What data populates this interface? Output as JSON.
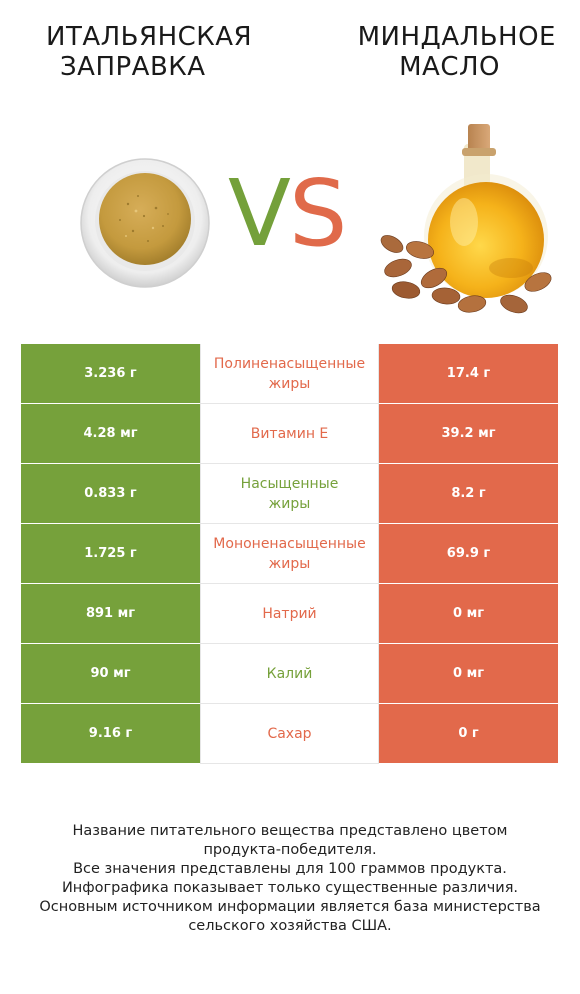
{
  "left_product": {
    "name_lines": [
      "Итальянская",
      "заправка"
    ],
    "color": "#76a13b"
  },
  "right_product": {
    "name_lines": [
      "Миндальное",
      "масло"
    ],
    "color": "#e2694b"
  },
  "vs": {
    "v": "V",
    "s": "S"
  },
  "rows": [
    {
      "left": "3.236 г",
      "label_lines": [
        "Полиненасыщенные",
        "жиры"
      ],
      "right": "17.4 г",
      "winner": "right"
    },
    {
      "left": "4.28 мг",
      "label_lines": [
        "Витамин E"
      ],
      "right": "39.2 мг",
      "winner": "right"
    },
    {
      "left": "0.833 г",
      "label_lines": [
        "Насыщенные",
        "жиры"
      ],
      "right": "8.2 г",
      "winner": "left"
    },
    {
      "left": "1.725 г",
      "label_lines": [
        "Мононенасыщенные",
        "жиры"
      ],
      "right": "69.9 г",
      "winner": "right"
    },
    {
      "left": "891 мг",
      "label_lines": [
        "Натрий"
      ],
      "right": "0 мг",
      "winner": "right"
    },
    {
      "left": "90 мг",
      "label_lines": [
        "Калий"
      ],
      "right": "0 мг",
      "winner": "left"
    },
    {
      "left": "9.16 г",
      "label_lines": [
        "Сахар"
      ],
      "right": "0 г",
      "winner": "right"
    }
  ],
  "footer_lines": [
    "Название питательного вещества представлено цветом",
    "продукта-победителя.",
    "Все значения представлены для 100 граммов продукта.",
    "Инфографика показывает только существенные различия.",
    "Основным источником информации является база министерства",
    "сельского хозяйства США."
  ]
}
